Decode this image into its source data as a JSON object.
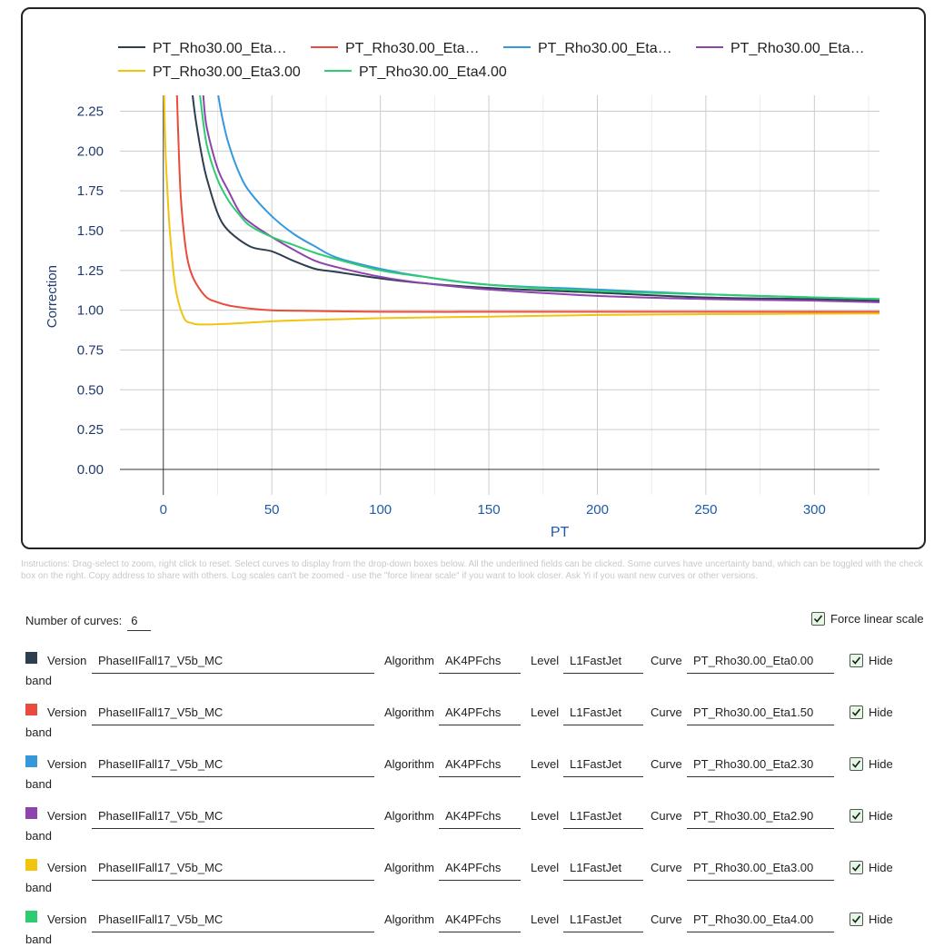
{
  "chart_data": {
    "type": "line",
    "title": "",
    "xlabel": "PT",
    "ylabel": "Correction",
    "xlim": [
      -20,
      330
    ],
    "ylim": [
      -0.16,
      2.35
    ],
    "xticks": [
      0,
      50,
      100,
      150,
      200,
      250,
      300
    ],
    "yticks": [
      0.0,
      0.25,
      0.5,
      0.75,
      1.0,
      1.25,
      1.5,
      1.75,
      2.0,
      2.25
    ],
    "xtick_labels": [
      "0",
      "50",
      "100",
      "150",
      "200",
      "250",
      "300"
    ],
    "ytick_labels": [
      "0.00",
      "0.25",
      "0.50",
      "0.75",
      "1.00",
      "1.25",
      "1.50",
      "1.75",
      "2.00",
      "2.25"
    ],
    "grid": true,
    "legend_position": "top",
    "series": [
      {
        "name": "PT_Rho30.00_Eta0.00",
        "legend_label": "PT_Rho30.00_Eta…",
        "color": "#2c3e50",
        "x": [
          13.5,
          15,
          18,
          20,
          25,
          30,
          40,
          50,
          60,
          70,
          80,
          100,
          120,
          150,
          200,
          250,
          300,
          330
        ],
        "y": [
          2.35,
          2.19,
          1.95,
          1.83,
          1.61,
          1.5,
          1.4,
          1.37,
          1.31,
          1.26,
          1.24,
          1.2,
          1.17,
          1.14,
          1.11,
          1.08,
          1.07,
          1.06
        ]
      },
      {
        "name": "PT_Rho30.00_Eta1.50",
        "legend_label": "PT_Rho30.00_Eta…",
        "color": "#e74c3c",
        "x": [
          6.3,
          7,
          8,
          10,
          12,
          15,
          20,
          25,
          30,
          40,
          50,
          70,
          100,
          150,
          200,
          250,
          300,
          330
        ],
        "y": [
          2.35,
          2.05,
          1.72,
          1.42,
          1.27,
          1.17,
          1.08,
          1.05,
          1.03,
          1.01,
          1.0,
          0.995,
          0.99,
          0.99,
          0.99,
          0.99,
          0.99,
          0.99
        ]
      },
      {
        "name": "PT_Rho30.00_Eta2.30",
        "legend_label": "PT_Rho30.00_Eta…",
        "color": "#3498db",
        "x": [
          25.3,
          27,
          30,
          35,
          40,
          50,
          60,
          70,
          80,
          100,
          120,
          150,
          200,
          250,
          300,
          330
        ],
        "y": [
          2.35,
          2.22,
          2.05,
          1.86,
          1.74,
          1.59,
          1.48,
          1.4,
          1.33,
          1.26,
          1.21,
          1.16,
          1.13,
          1.1,
          1.08,
          1.07
        ]
      },
      {
        "name": "PT_Rho30.00_Eta2.90",
        "legend_label": "PT_Rho30.00_Eta…",
        "color": "#8e44ad",
        "x": [
          18.4,
          20,
          25,
          30,
          35,
          40,
          50,
          60,
          70,
          80,
          100,
          120,
          150,
          200,
          250,
          300,
          330
        ],
        "y": [
          2.35,
          2.15,
          1.89,
          1.75,
          1.62,
          1.55,
          1.46,
          1.38,
          1.31,
          1.27,
          1.21,
          1.17,
          1.13,
          1.09,
          1.07,
          1.06,
          1.05
        ]
      },
      {
        "name": "PT_Rho30.00_Eta3.00",
        "legend_label": "PT_Rho30.00_Eta3.00",
        "color": "#f1c40f",
        "x": [
          0.4,
          1,
          2,
          3,
          5,
          7,
          10,
          13,
          15,
          20,
          30,
          50,
          70,
          100,
          150,
          200,
          250,
          300,
          330
        ],
        "y": [
          2.35,
          2.0,
          1.72,
          1.5,
          1.2,
          1.05,
          0.94,
          0.92,
          0.912,
          0.91,
          0.915,
          0.93,
          0.94,
          0.95,
          0.96,
          0.97,
          0.975,
          0.978,
          0.98
        ]
      },
      {
        "name": "PT_Rho30.00_Eta4.00",
        "legend_label": "PT_Rho30.00_Eta4.00",
        "color": "#2ecc71",
        "x": [
          16.9,
          20,
          25,
          30,
          35,
          40,
          50,
          60,
          70,
          80,
          100,
          120,
          150,
          200,
          250,
          300,
          330
        ],
        "y": [
          2.35,
          2.04,
          1.82,
          1.69,
          1.6,
          1.53,
          1.46,
          1.41,
          1.36,
          1.32,
          1.25,
          1.21,
          1.16,
          1.12,
          1.1,
          1.08,
          1.07
        ]
      }
    ]
  },
  "instructions": "Instructions: Drag-select to zoom, right click to reset. Select curves to display from the drop-down boxes below. All the underlined fields can be clicked. Some curves have uncertainty band, which can be toggled with the check box on the right. Copy address to share with others. Log scales can't be zoomed - use the \"force linear scale\" if you want to look closer. Ask Yi if you want new curves or other versions.",
  "controls": {
    "num_curves_label": "Number of curves:",
    "num_curves_value": "6",
    "force_linear_label": "Force linear scale"
  },
  "curve_labels": {
    "version": "Version",
    "algorithm": "Algorithm",
    "level": "Level",
    "curve": "Curve",
    "hide": "Hide",
    "band": "band"
  },
  "curves": [
    {
      "color": "#2c3e50",
      "version": "PhaseIIFall17_V5b_MC",
      "algorithm": "AK4PFchs",
      "level": "L1FastJet",
      "curve": "PT_Rho30.00_Eta0.00"
    },
    {
      "color": "#e74c3c",
      "version": "PhaseIIFall17_V5b_MC",
      "algorithm": "AK4PFchs",
      "level": "L1FastJet",
      "curve": "PT_Rho30.00_Eta1.50"
    },
    {
      "color": "#3498db",
      "version": "PhaseIIFall17_V5b_MC",
      "algorithm": "AK4PFchs",
      "level": "L1FastJet",
      "curve": "PT_Rho30.00_Eta2.30"
    },
    {
      "color": "#8e44ad",
      "version": "PhaseIIFall17_V5b_MC",
      "algorithm": "AK4PFchs",
      "level": "L1FastJet",
      "curve": "PT_Rho30.00_Eta2.90"
    },
    {
      "color": "#f1c40f",
      "version": "PhaseIIFall17_V5b_MC",
      "algorithm": "AK4PFchs",
      "level": "L1FastJet",
      "curve": "PT_Rho30.00_Eta3.00"
    },
    {
      "color": "#2ecc71",
      "version": "PhaseIIFall17_V5b_MC",
      "algorithm": "AK4PFchs",
      "level": "L1FastJet",
      "curve": "PT_Rho30.00_Eta4.00"
    }
  ]
}
